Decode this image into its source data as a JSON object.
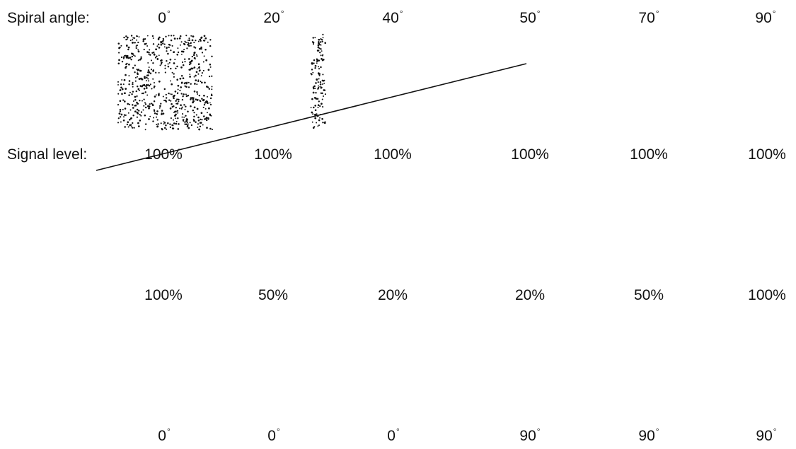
{
  "rows": {
    "spiral_angle": {
      "label": "Spiral angle:",
      "values": [
        "0",
        "20",
        "40",
        "50",
        "70",
        "90"
      ],
      "unit": "°"
    },
    "signal_level": {
      "label": "Signal level:",
      "values": [
        "100%",
        "100%",
        "100%",
        "100%",
        "100%",
        "100%"
      ]
    },
    "row3": {
      "values": [
        "100%",
        "50%",
        "20%",
        "20%",
        "50%",
        "100%"
      ]
    },
    "row4": {
      "values": [
        "0",
        "0",
        "0",
        "90",
        "90",
        "90"
      ],
      "unit": "°"
    }
  },
  "line_color": "#111111",
  "dot_color": "#111111"
}
